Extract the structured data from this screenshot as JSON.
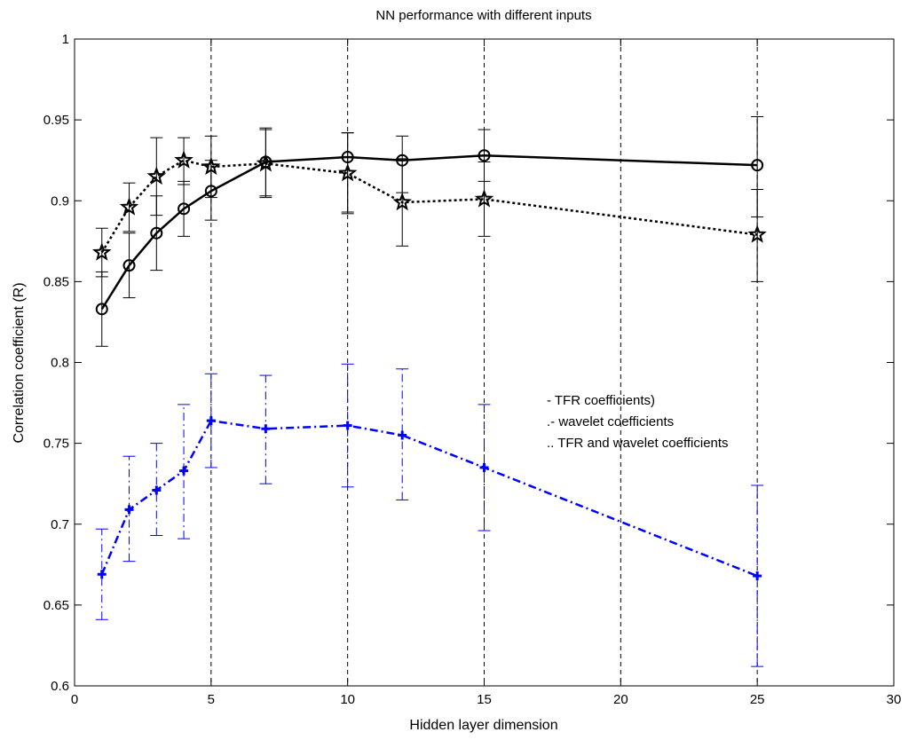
{
  "chart_data": {
    "type": "line",
    "title": "NN performance with different inputs",
    "xlabel": "Hidden layer dimension",
    "ylabel": "Correlation coefficient (R)",
    "xlim": [
      0,
      30
    ],
    "ylim": [
      0.6,
      1
    ],
    "xticks": [
      "0",
      "5",
      "10",
      "15",
      "20",
      "25",
      "30"
    ],
    "yticks": [
      "0.6",
      "0.65",
      "0.7",
      "0.75",
      "0.8",
      "0.85",
      "0.9",
      "0.95",
      "1"
    ],
    "vertical_dashed_lines_at": [
      5,
      10,
      15,
      20,
      25,
      30
    ],
    "grid": false,
    "annotation_lines": [
      "- TFR coefficients)",
      ".- wavelet coefficients",
      ".. TFR and wavelet coefficients"
    ],
    "series": [
      {
        "style": "solid",
        "marker": "circle",
        "color": "#000000",
        "x": [
          1,
          2,
          3,
          4,
          5,
          7,
          10,
          12,
          15,
          25
        ],
        "y": [
          0.833,
          0.86,
          0.88,
          0.895,
          0.906,
          0.924,
          0.927,
          0.925,
          0.928,
          0.922
        ],
        "err_low": [
          0.81,
          0.84,
          0.857,
          0.878,
          0.888,
          0.903,
          0.893,
          0.905,
          0.912,
          0.89
        ],
        "err_high": [
          0.856,
          0.88,
          0.903,
          0.912,
          0.925,
          0.945,
          0.942,
          0.94,
          0.944,
          0.952
        ]
      },
      {
        "style": "dotted",
        "marker": "star",
        "color": "#000000",
        "x": [
          1,
          2,
          3,
          4,
          5,
          7,
          10,
          12,
          15,
          25
        ],
        "y": [
          0.868,
          0.896,
          0.915,
          0.925,
          0.921,
          0.923,
          0.917,
          0.899,
          0.901,
          0.879
        ],
        "err_low": [
          0.853,
          0.881,
          0.891,
          0.91,
          0.902,
          0.902,
          0.892,
          0.872,
          0.878,
          0.85
        ],
        "err_high": [
          0.883,
          0.911,
          0.939,
          0.939,
          0.94,
          0.944,
          0.942,
          0.926,
          0.924,
          0.907
        ]
      },
      {
        "style": "dashdot",
        "marker": "plus",
        "color": "#0000ff",
        "x": [
          1,
          2,
          3,
          4,
          5,
          7,
          10,
          12,
          15,
          25
        ],
        "y": [
          0.669,
          0.709,
          0.721,
          0.733,
          0.764,
          0.759,
          0.761,
          0.755,
          0.735,
          0.668
        ],
        "err_low": [
          0.641,
          0.677,
          0.693,
          0.691,
          0.735,
          0.725,
          0.723,
          0.715,
          0.696,
          0.612
        ],
        "err_high": [
          0.697,
          0.742,
          0.75,
          0.774,
          0.793,
          0.792,
          0.799,
          0.796,
          0.774,
          0.724
        ]
      }
    ]
  }
}
